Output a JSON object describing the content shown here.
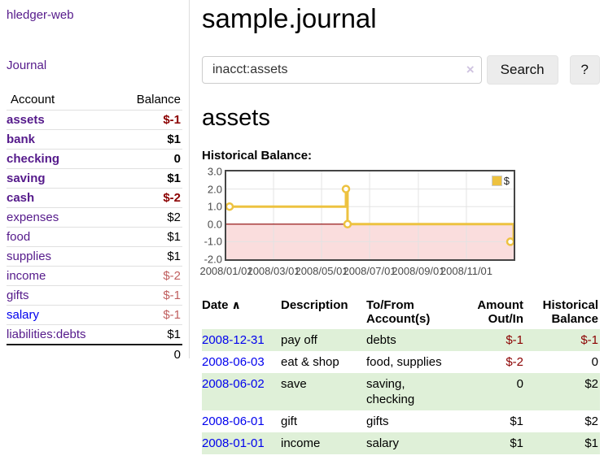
{
  "colors": {
    "accent_purple": "#551a8b",
    "link_blue": "#0000ee",
    "negative_strong": "#8b0000",
    "negative_muted": "#c05f5f",
    "stripe_green": "#dff0d8",
    "series_gold": "#edc240",
    "negative_region_pink": "#fadddd",
    "zero_line_red": "#8b0000",
    "grid_gray": "#e3e3e3"
  },
  "sidebar": {
    "brand": "hledger-web",
    "nav": [
      {
        "label": "Journal"
      }
    ],
    "accounts_table": {
      "headers": [
        "Account",
        "Balance"
      ],
      "rows": [
        {
          "account": "assets",
          "balance": "$-1",
          "indent": 1,
          "bold": true,
          "balance_color": "negative-strong"
        },
        {
          "account": "bank",
          "balance": "$1",
          "indent": 2,
          "bold": true,
          "balance_color": "normal"
        },
        {
          "account": "checking",
          "balance": "0",
          "indent": 3,
          "bold": true,
          "balance_color": "normal"
        },
        {
          "account": "saving",
          "balance": "$1",
          "indent": 3,
          "bold": true,
          "balance_color": "normal"
        },
        {
          "account": "cash",
          "balance": "$-2",
          "indent": 2,
          "bold": true,
          "balance_color": "negative-strong"
        },
        {
          "account": "expenses",
          "balance": "$2",
          "indent": 1,
          "bold": false,
          "balance_color": "normal"
        },
        {
          "account": "food",
          "balance": "$1",
          "indent": 2,
          "bold": false,
          "balance_color": "normal"
        },
        {
          "account": "supplies",
          "balance": "$1",
          "indent": 2,
          "bold": false,
          "balance_color": "normal"
        },
        {
          "account": "income",
          "balance": "$-2",
          "indent": 1,
          "bold": false,
          "balance_color": "negative-muted"
        },
        {
          "account": "gifts",
          "balance": "$-1",
          "indent": 2,
          "bold": false,
          "balance_color": "negative-muted"
        },
        {
          "account": "salary",
          "balance": "$-1",
          "indent": 2,
          "bold": false,
          "balance_color": "negative-muted",
          "link_color": "blue"
        },
        {
          "account": "liabilities:debts",
          "balance": "$1",
          "indent": 1,
          "bold": false,
          "balance_color": "normal"
        }
      ],
      "total": "0"
    }
  },
  "header": {
    "title": "sample.journal"
  },
  "search": {
    "value": "inacct:assets",
    "clear_icon": "×",
    "search_label": "Search",
    "help_label": "?"
  },
  "main": {
    "account_heading": "assets",
    "chart_label": "Historical Balance:"
  },
  "chart_data": {
    "type": "line",
    "step": true,
    "title": "Historical Balance:",
    "series": [
      {
        "name": "$",
        "color": "#edc240",
        "points": [
          {
            "x": "2008-01-01",
            "y": 1
          },
          {
            "x": "2008-06-01",
            "y": 2
          },
          {
            "x": "2008-06-03",
            "y": 0
          },
          {
            "x": "2008-12-31",
            "y": -1
          }
        ]
      }
    ],
    "xlim": [
      "2008-01-01",
      "2008-12-31"
    ],
    "ylim": [
      -2,
      3
    ],
    "yticks": [
      {
        "v": 3,
        "label": "3.0"
      },
      {
        "v": 2,
        "label": "2.0"
      },
      {
        "v": 1,
        "label": "1.0"
      },
      {
        "v": 0,
        "label": "0.0"
      },
      {
        "v": -1,
        "label": "-1.0"
      },
      {
        "v": -2,
        "label": "-2.0"
      }
    ],
    "xticks": [
      {
        "date": "2008-01-01",
        "label": "2008/01/01"
      },
      {
        "date": "2008-03-01",
        "label": "2008/03/01"
      },
      {
        "date": "2008-05-01",
        "label": "2008/05/01"
      },
      {
        "date": "2008-07-01",
        "label": "2008/07/01"
      },
      {
        "date": "2008-09-01",
        "label": "2008/09/01"
      },
      {
        "date": "2008-11-01",
        "label": "2008/11/01"
      }
    ],
    "grid": true,
    "negative_region_shaded": true,
    "legend": {
      "position": "top-right",
      "label": "$"
    }
  },
  "register_table": {
    "sort_icon": "∧",
    "headers": {
      "date": "Date",
      "description": "Description",
      "accounts": "To/From Account(s)",
      "amount": "Amount Out/In",
      "balance": "Historical Balance"
    },
    "rows": [
      {
        "date": "2008-12-31",
        "description": "pay off",
        "accounts": "debts",
        "amount": "$-1",
        "amount_negative": true,
        "balance": "$-1",
        "balance_negative": true
      },
      {
        "date": "2008-06-03",
        "description": "eat & shop",
        "accounts": "food, supplies",
        "amount": "$-2",
        "amount_negative": true,
        "balance": "0",
        "balance_negative": false
      },
      {
        "date": "2008-06-02",
        "description": "save",
        "accounts": "saving, checking",
        "amount": "0",
        "amount_negative": false,
        "balance": "$2",
        "balance_negative": false
      },
      {
        "date": "2008-06-01",
        "description": "gift",
        "accounts": "gifts",
        "amount": "$1",
        "amount_negative": false,
        "balance": "$2",
        "balance_negative": false
      },
      {
        "date": "2008-01-01",
        "description": "income",
        "accounts": "salary",
        "amount": "$1",
        "amount_negative": false,
        "balance": "$1",
        "balance_negative": false
      }
    ]
  }
}
